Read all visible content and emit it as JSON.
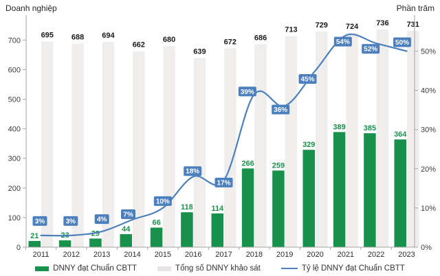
{
  "chart_data": {
    "type": "combo-bar-line",
    "title": "",
    "categories": [
      "2011",
      "2012",
      "2013",
      "2014",
      "2015",
      "2016",
      "2017",
      "2018",
      "2019",
      "2020",
      "2021",
      "2022",
      "2023"
    ],
    "series": [
      {
        "name": "DNNY đạt Chuẩn CBTT",
        "type": "bar",
        "axis": "left",
        "color": "#17914b",
        "values": [
          21,
          23,
          29,
          44,
          66,
          118,
          114,
          266,
          259,
          329,
          389,
          385,
          364
        ]
      },
      {
        "name": "Tổng số DNNY khảo sát",
        "type": "bar",
        "axis": "left",
        "color": "#f0eded",
        "values": [
          695,
          688,
          694,
          662,
          680,
          639,
          672,
          686,
          713,
          729,
          724,
          736,
          731
        ]
      },
      {
        "name": "Tỷ lệ DNNY đạt Chuẩn CBTT",
        "type": "line",
        "axis": "right",
        "color": "#4c7fbd",
        "values": [
          3,
          3,
          4,
          7,
          10,
          18,
          17,
          39,
          36,
          45,
          54,
          52,
          50
        ],
        "point_labels": [
          "3%",
          "3%",
          "4%",
          "7%",
          "10%",
          "18%",
          "17%",
          "39%",
          "36%",
          "45%",
          "54%",
          "52%",
          "50%"
        ]
      }
    ],
    "left_axis": {
      "title": "Doanh nghiệp",
      "min": 0,
      "max": 700,
      "tick_labels": [
        "0",
        "100",
        "200",
        "300",
        "400",
        "500",
        "600",
        "700"
      ]
    },
    "right_axis": {
      "title": "Phần trăm",
      "min": 0,
      "max": 50,
      "tick_labels": [
        "0%",
        "10%",
        "20%",
        "30%",
        "40%",
        "50%"
      ]
    },
    "legend_position": "bottom",
    "grid": false,
    "colors": {
      "axis_line": "#a3a3a3",
      "tick_text": "#3d3d3d",
      "year_text": "#2b2b2b",
      "total_label_text": "#1a1a1a",
      "point_label_text": "#ffffff"
    }
  }
}
